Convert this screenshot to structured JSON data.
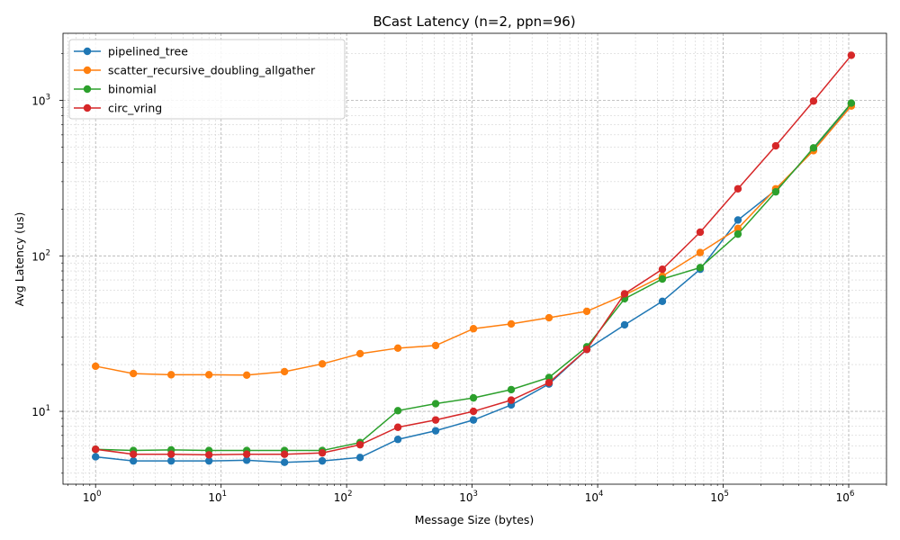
{
  "chart_data": {
    "type": "line",
    "title": "BCast Latency (n=2, ppn=96)",
    "xlabel": "Message Size (bytes)",
    "ylabel": "Avg Latency (us)",
    "xscale": "log",
    "yscale": "log",
    "xlim": [
      0.55,
      2000000
    ],
    "ylim": [
      3.4,
      2700
    ],
    "grid": true,
    "legend_position": "top-left",
    "x_tick_labels": [
      {
        "value": 1,
        "base": "10",
        "exp": "0"
      },
      {
        "value": 10,
        "base": "10",
        "exp": "1"
      },
      {
        "value": 100,
        "base": "10",
        "exp": "2"
      },
      {
        "value": 1000,
        "base": "10",
        "exp": "3"
      },
      {
        "value": 10000,
        "base": "10",
        "exp": "4"
      },
      {
        "value": 100000,
        "base": "10",
        "exp": "5"
      },
      {
        "value": 1000000,
        "base": "10",
        "exp": "6"
      }
    ],
    "y_tick_labels": [
      {
        "value": 10,
        "base": "10",
        "exp": "1"
      },
      {
        "value": 100,
        "base": "10",
        "exp": "2"
      },
      {
        "value": 1000,
        "base": "10",
        "exp": "3"
      }
    ],
    "x": [
      1,
      2,
      4,
      8,
      16,
      32,
      64,
      128,
      256,
      512,
      1024,
      2048,
      4096,
      8192,
      16384,
      32768,
      65536,
      131072,
      262144,
      524288,
      1048576
    ],
    "series": [
      {
        "name": "pipelined_tree",
        "color": "#1f77b4",
        "values": [
          5.1,
          4.8,
          4.8,
          4.8,
          4.85,
          4.7,
          4.8,
          5.05,
          6.6,
          7.5,
          8.8,
          11.0,
          15.0,
          25.0,
          36.0,
          51.0,
          82.0,
          170.0,
          265.0,
          480.0,
          950.0
        ]
      },
      {
        "name": "scatter_recursive_doubling_allgather",
        "color": "#ff7f0e",
        "values": [
          19.5,
          17.5,
          17.2,
          17.2,
          17.1,
          18.0,
          20.2,
          23.5,
          25.5,
          26.5,
          34.0,
          36.5,
          40.0,
          44.0,
          56.0,
          74.0,
          105.0,
          150.0,
          270.0,
          475.0,
          920.0
        ]
      },
      {
        "name": "binomial",
        "color": "#2ca02c",
        "values": [
          5.7,
          5.6,
          5.65,
          5.6,
          5.6,
          5.6,
          5.6,
          6.3,
          10.1,
          11.2,
          12.2,
          13.8,
          16.5,
          26.0,
          53.0,
          71.0,
          84.0,
          138.0,
          258.0,
          495.0,
          960.0
        ]
      },
      {
        "name": "circ_vring",
        "color": "#d62728",
        "values": [
          5.7,
          5.3,
          5.3,
          5.25,
          5.3,
          5.3,
          5.4,
          6.1,
          7.9,
          8.8,
          10.0,
          11.8,
          15.3,
          25.0,
          57.0,
          82.0,
          142.0,
          270.0,
          510.0,
          990.0,
          1950.0
        ]
      }
    ]
  }
}
